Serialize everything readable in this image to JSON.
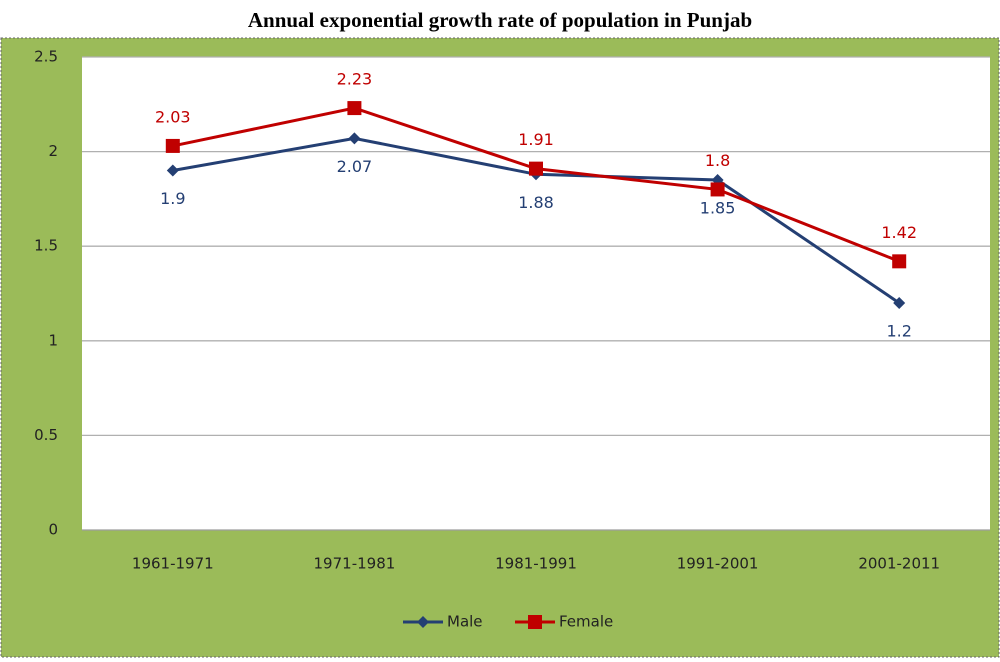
{
  "chart_data": {
    "type": "line",
    "title": "Annual exponential growth rate of population in Punjab",
    "categories": [
      "1961-1971",
      "1971-1981",
      "1981-1991",
      "1991-2001",
      "2001-2011"
    ],
    "series": [
      {
        "name": "Male",
        "color": "#243f73",
        "marker": "diamond",
        "values": [
          1.9,
          2.07,
          1.88,
          1.85,
          1.2
        ]
      },
      {
        "name": "Female",
        "color": "#c00000",
        "marker": "square",
        "values": [
          2.03,
          2.23,
          1.91,
          1.8,
          1.42
        ]
      }
    ],
    "ylim": [
      0,
      2.5
    ],
    "yticks": [
      0,
      0.5,
      1,
      1.5,
      2,
      2.5
    ],
    "grid": true,
    "legend": "bottom"
  }
}
